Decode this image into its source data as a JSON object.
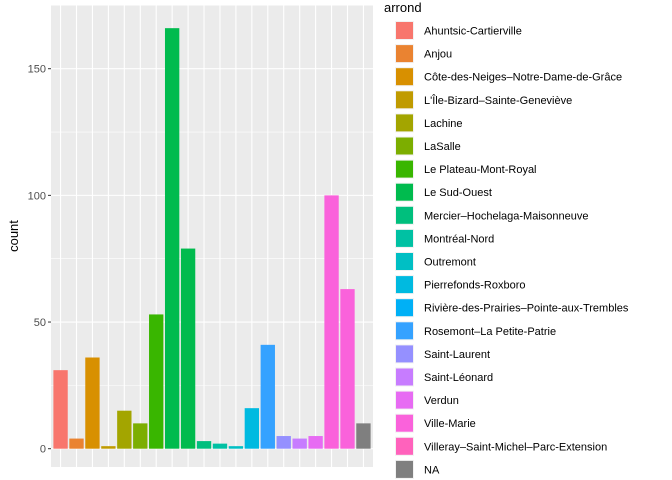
{
  "chart_data": {
    "type": "bar",
    "xlabel": "",
    "ylabel": "count",
    "ylim": [
      0,
      174
    ],
    "y_ticks": [
      0,
      50,
      100,
      150
    ],
    "grid": true,
    "legend_title": "arrond",
    "legend_position": "right",
    "background": "#ebebeb",
    "categories": [
      "Ahuntsic-Cartierville",
      "Anjou",
      "Côte-des-Neiges–Notre-Dame-de-Grâce",
      "L'Île-Bizard–Sainte-Geneviève",
      "Lachine",
      "LaSalle",
      "Le Plateau-Mont-Royal",
      "Le Sud-Ouest",
      "Mercier–Hochelaga-Maisonneuve",
      "Montréal-Nord",
      "Outremont",
      "Pierrefonds-Roxboro",
      "Rivière-des-Prairies–Pointe-aux-Trembles",
      "Rosemont–La Petite-Patrie",
      "Saint-Laurent",
      "Saint-Léonard",
      "Verdun",
      "Ville-Marie",
      "Villeray–Saint-Michel–Parc-Extension",
      "NA"
    ],
    "colors": [
      "#f8766d",
      "#ea8331",
      "#d89000",
      "#c09b00",
      "#a3a500",
      "#7cae00",
      "#39b600",
      "#00bb4e",
      "#00bf7d",
      "#00c1a3",
      "#00bfc4",
      "#00bae0",
      "#00b0f6",
      "#35a2ff",
      "#9590ff",
      "#c77cff",
      "#e76bf3",
      "#fa62db",
      "#ff62bc",
      "#7f7f7f"
    ],
    "bars": [
      {
        "category": "Ahuntsic-Cartierville",
        "value": 31
      },
      {
        "category": "Anjou",
        "value": 4
      },
      {
        "category": "Côte-des-Neiges–Notre-Dame-de-Grâce",
        "value": 36
      },
      {
        "category": "L'Île-Bizard–Sainte-Geneviève",
        "value": 1
      },
      {
        "category": "Lachine",
        "value": 15
      },
      {
        "category": "LaSalle",
        "value": 10
      },
      {
        "category": "Le Plateau-Mont-Royal",
        "value": 53
      },
      {
        "category": "Le Sud-Ouest",
        "value": 166
      },
      {
        "category": "Le Sud-Ouest",
        "value": 79
      },
      {
        "category": "Mercier–Hochelaga-Maisonneuve",
        "value": 3
      },
      {
        "category": "Montréal-Nord",
        "value": 2
      },
      {
        "category": "Outremont",
        "value": 1
      },
      {
        "category": "Pierrefonds-Roxboro",
        "value": 16
      },
      {
        "category": "Rosemont–La Petite-Patrie",
        "value": 41
      },
      {
        "category": "Saint-Laurent",
        "value": 5
      },
      {
        "category": "Saint-Léonard",
        "value": 4
      },
      {
        "category": "Verdun",
        "value": 5
      },
      {
        "category": "Ville-Marie",
        "value": 100
      },
      {
        "category": "Ville-Marie",
        "value": 63
      },
      {
        "category": "NA",
        "value": 10
      }
    ]
  }
}
